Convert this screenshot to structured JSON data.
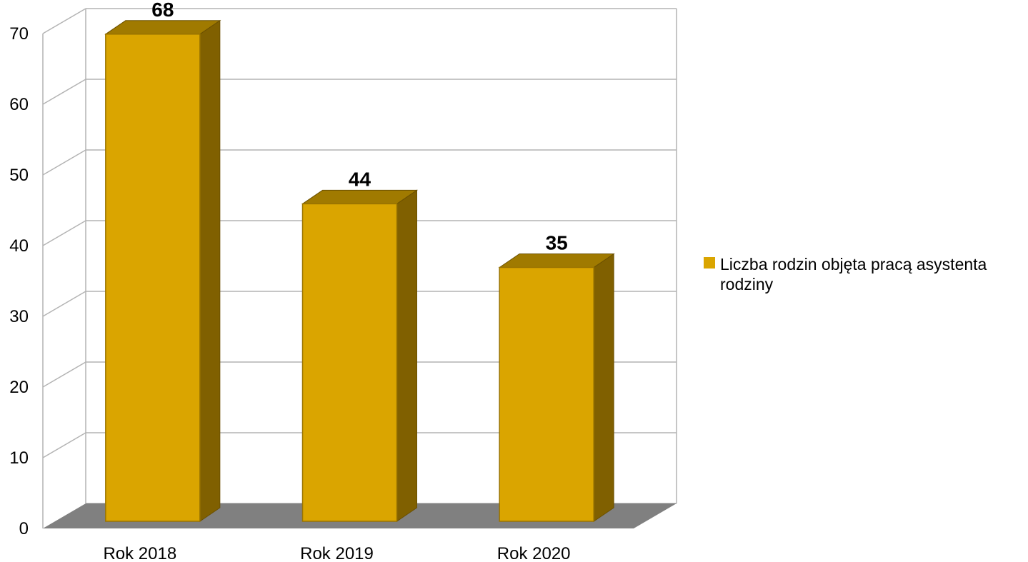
{
  "chart_data": {
    "type": "bar",
    "categories": [
      "Rok 2018",
      "Rok 2019",
      "Rok 2020"
    ],
    "series": [
      {
        "name": "Liczba rodzin objęta pracą asystenta rodziny",
        "values": [
          68,
          44,
          35
        ]
      }
    ],
    "ylim": [
      0,
      70
    ],
    "yticks": [
      0,
      10,
      20,
      30,
      40,
      50,
      60,
      70
    ],
    "title": "",
    "xlabel": "",
    "ylabel": "",
    "grid": true,
    "legend_position": "right",
    "colors": {
      "bar_front": "#daa500",
      "bar_side": "#806000",
      "bar_top": "#a07a00",
      "floor": "#808080",
      "grid": "#b3b3b3"
    }
  }
}
